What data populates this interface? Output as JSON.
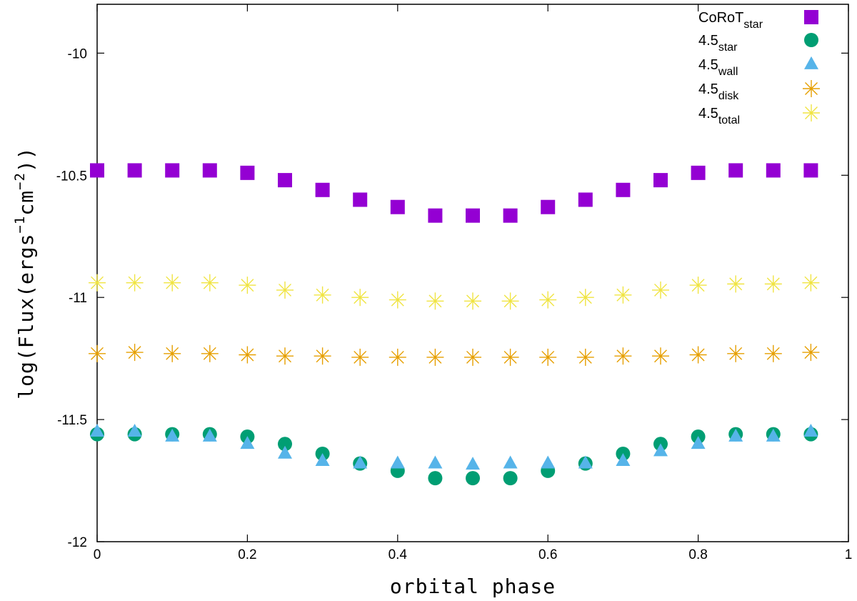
{
  "chart_data": {
    "type": "scatter",
    "title": "",
    "xlabel": "orbital phase",
    "ylabel": {
      "prefix": "log(Flux(ergs",
      "sup1": "−1",
      "mid": "cm",
      "sup2": "−2",
      "suffix": "))"
    },
    "xlim": [
      0,
      1
    ],
    "ylim": [
      -12,
      -9.8
    ],
    "x_ticks": [
      0,
      0.2,
      0.4,
      0.6,
      0.8,
      1
    ],
    "x_tick_labels": [
      "0",
      "0.2",
      "0.4",
      "0.6",
      "0.8",
      "1"
    ],
    "y_ticks": [
      -12,
      -11.5,
      -11,
      -10.5,
      -10
    ],
    "y_tick_labels": [
      "-12",
      "-11.5",
      "-11",
      "-10.5",
      "-10"
    ],
    "grid": false,
    "legend_position": "top-right",
    "x": [
      0,
      0.05,
      0.1,
      0.15,
      0.2,
      0.25,
      0.3,
      0.35,
      0.4,
      0.45,
      0.5,
      0.55,
      0.6,
      0.65,
      0.7,
      0.75,
      0.8,
      0.85,
      0.9,
      0.95
    ],
    "series": [
      {
        "name": "CoRoT_star",
        "label_main": "CoRoT",
        "label_sub": "star",
        "marker": "square",
        "color": "#9400d3",
        "values": [
          -10.48,
          -10.48,
          -10.48,
          -10.48,
          -10.49,
          -10.52,
          -10.56,
          -10.6,
          -10.63,
          -10.665,
          -10.665,
          -10.665,
          -10.63,
          -10.6,
          -10.56,
          -10.52,
          -10.49,
          -10.48,
          -10.48,
          -10.48
        ]
      },
      {
        "name": "4.5_star",
        "label_main": "4.5",
        "label_sub": "star",
        "marker": "circle",
        "color": "#009e73",
        "values": [
          -11.56,
          -11.56,
          -11.56,
          -11.56,
          -11.57,
          -11.6,
          -11.64,
          -11.68,
          -11.71,
          -11.74,
          -11.74,
          -11.74,
          -11.71,
          -11.68,
          -11.64,
          -11.6,
          -11.57,
          -11.56,
          -11.56,
          -11.56
        ]
      },
      {
        "name": "4.5_wall",
        "label_main": "4.5",
        "label_sub": "wall",
        "marker": "triangle",
        "color": "#56b4e9",
        "values": [
          -11.55,
          -11.55,
          -11.57,
          -11.57,
          -11.6,
          -11.64,
          -11.67,
          -11.68,
          -11.68,
          -11.68,
          -11.685,
          -11.68,
          -11.68,
          -11.68,
          -11.67,
          -11.63,
          -11.6,
          -11.57,
          -11.57,
          -11.55
        ]
      },
      {
        "name": "4.5_disk",
        "label_main": "4.5",
        "label_sub": "disk",
        "marker": "asterisk",
        "color": "#e69f00",
        "values": [
          -11.23,
          -11.225,
          -11.23,
          -11.23,
          -11.235,
          -11.24,
          -11.24,
          -11.245,
          -11.245,
          -11.245,
          -11.245,
          -11.245,
          -11.245,
          -11.245,
          -11.24,
          -11.24,
          -11.235,
          -11.23,
          -11.23,
          -11.225
        ]
      },
      {
        "name": "4.5_total",
        "label_main": "4.5",
        "label_sub": "total",
        "marker": "asterisk",
        "color": "#f0e442",
        "values": [
          -10.94,
          -10.94,
          -10.94,
          -10.94,
          -10.95,
          -10.97,
          -10.99,
          -11.0,
          -11.01,
          -11.015,
          -11.015,
          -11.015,
          -11.01,
          -11.0,
          -10.99,
          -10.97,
          -10.95,
          -10.945,
          -10.945,
          -10.94
        ]
      }
    ]
  }
}
